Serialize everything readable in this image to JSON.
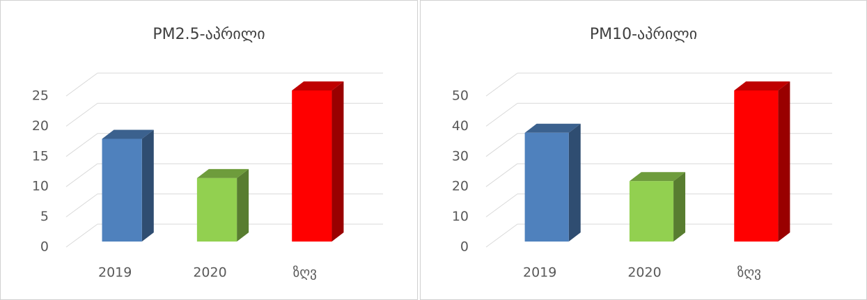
{
  "chart_data": [
    {
      "type": "bar",
      "title": "PM2.5-აპრილი",
      "categories": [
        "2019",
        "2020",
        "ზღვ"
      ],
      "values": [
        17,
        10.5,
        25
      ],
      "colors": [
        "#4f81bd",
        "#92d050",
        "#ff0000"
      ],
      "ylim": [
        0,
        25
      ],
      "yticks": [
        0,
        5,
        10,
        15,
        20,
        25
      ],
      "grid": true
    },
    {
      "type": "bar",
      "title": "PM10-აპრილი",
      "categories": [
        "2019",
        "2020",
        "ზღვ"
      ],
      "values": [
        36,
        20,
        50
      ],
      "colors": [
        "#4f81bd",
        "#92d050",
        "#ff0000"
      ],
      "ylim": [
        0,
        50
      ],
      "yticks": [
        0,
        10,
        20,
        30,
        40,
        50
      ],
      "grid": true
    }
  ]
}
